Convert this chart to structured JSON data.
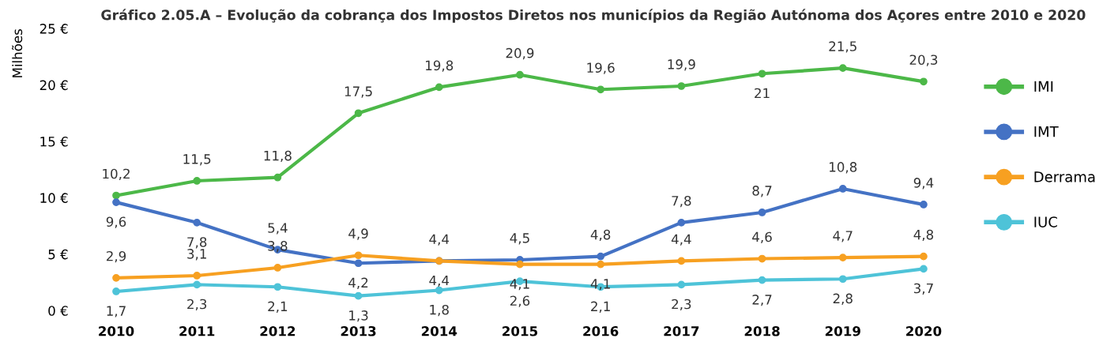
{
  "chart_data": {
    "type": "line",
    "title": "Gráfico 2.05.A – Evolução da cobrança dos Impostos Diretos nos municípios da Região Autónoma dos Açores entre 2010 e 2020",
    "ylabel": "Milhões",
    "categories": [
      "2010",
      "2011",
      "2012",
      "2013",
      "2014",
      "2015",
      "2016",
      "2017",
      "2018",
      "2019",
      "2020"
    ],
    "series": [
      {
        "name": "IMI",
        "color": "#4cb848",
        "values": [
          10.2,
          11.5,
          11.8,
          17.5,
          19.8,
          20.9,
          19.6,
          19.9,
          21,
          21.5,
          20.3
        ],
        "value_labels": [
          "10,2",
          "11,5",
          "11,8",
          "17,5",
          "19,8",
          "20,9",
          "19,6",
          "19,9",
          "21",
          "21,5",
          "20,3"
        ]
      },
      {
        "name": "IMT",
        "color": "#4472c4",
        "values": [
          9.6,
          7.8,
          5.4,
          4.2,
          4.4,
          4.5,
          4.8,
          7.8,
          8.7,
          10.8,
          9.4
        ],
        "value_labels": [
          "9,6",
          "7,8",
          "5,4",
          "4,2",
          "4,4",
          "4,5",
          "4,8",
          "7,8",
          "8,7",
          "10,8",
          "9,4"
        ]
      },
      {
        "name": "Derrama",
        "color": "#f7a021",
        "values": [
          2.9,
          3.1,
          3.8,
          4.9,
          4.4,
          4.1,
          4.1,
          4.4,
          4.6,
          4.7,
          4.8
        ],
        "value_labels": [
          "2,9",
          "3,1",
          "3,8",
          "4,9",
          "4,4",
          "4,1",
          "4,1",
          "4,4",
          "4,6",
          "4,7",
          "4,8"
        ]
      },
      {
        "name": "IUC",
        "color": "#4ec3d8",
        "values": [
          1.7,
          2.3,
          2.1,
          1.3,
          1.8,
          2.6,
          2.1,
          2.3,
          2.7,
          2.8,
          3.7
        ],
        "value_labels": [
          "1,7",
          "2,3",
          "2,1",
          "1,3",
          "1,8",
          "2,6",
          "2,1",
          "2,3",
          "2,7",
          "2,8",
          "3,7"
        ]
      }
    ],
    "ylim": [
      0,
      25
    ],
    "yticks": [
      {
        "value": 0,
        "label": "0 €"
      },
      {
        "value": 5,
        "label": "5 €"
      },
      {
        "value": 10,
        "label": "10 €"
      },
      {
        "value": 15,
        "label": "15 €"
      },
      {
        "value": 20,
        "label": "20 €"
      },
      {
        "value": 25,
        "label": "25 €"
      }
    ],
    "grid": false,
    "legend": "right",
    "marker": "circle",
    "line_style": "solid"
  }
}
